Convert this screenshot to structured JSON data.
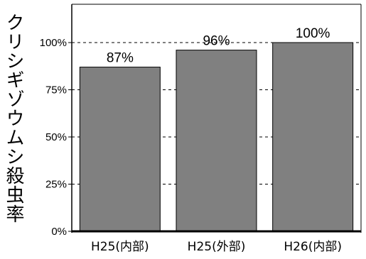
{
  "chart_data": {
    "type": "bar",
    "title": "",
    "xlabel": "",
    "ylabel": "クリシギゾウムシ殺虫率",
    "categories": [
      "H25(内部)",
      "H25(外部)",
      "H26(内部)"
    ],
    "values": [
      87,
      96,
      100
    ],
    "data_labels": [
      "87%",
      "96%",
      "100%"
    ],
    "ylim": [
      0,
      100
    ],
    "yticks": [
      0,
      25,
      50,
      75,
      100
    ],
    "ytick_labels": [
      "0%",
      "25%",
      "50%",
      "75%",
      "100%"
    ],
    "grid": "dashed horizontal",
    "legend": "none"
  },
  "colors": {
    "bar_fill": "#808080",
    "bar_stroke": "#000000",
    "grid": "#000000"
  }
}
